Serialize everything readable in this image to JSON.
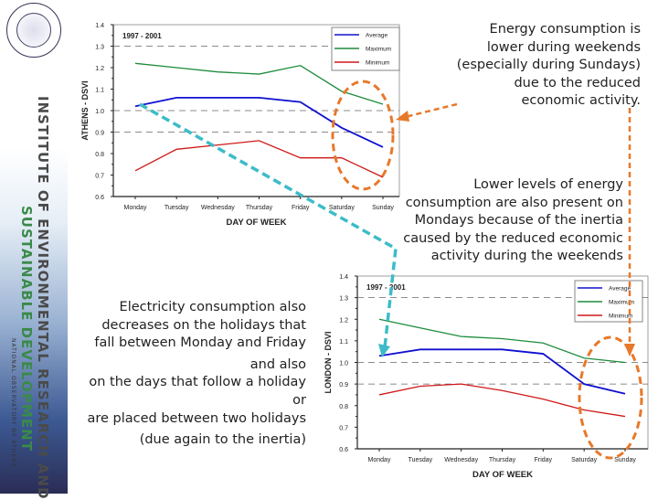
{
  "sidebar": {
    "institute_line1": "INSTITUTE OF ENVIRONMENTAL RESEARCH AND",
    "institute_line2": "SUSTAINABLE DEVELOPMENT",
    "observatory": "NATIONAL OBSERVATORY OF ATHENS",
    "seal_text": "NATIONAL OBSERVATORY OF ATHENS"
  },
  "notes": {
    "weekend": [
      "Energy consumption is",
      "lower during weekends",
      "(especially during Sundays)",
      "due to the reduced",
      "economic activity."
    ],
    "monday": [
      "Lower levels of energy",
      "consumption are also present on",
      "Mondays because of the inertia",
      "caused by the reduced economic",
      "activity during the weekends"
    ],
    "holidays": [
      "Electricity consumption also",
      "decreases on the holidays that",
      "fall between Monday and Friday",
      "and also",
      "on the days that follow a holiday",
      "or",
      "are placed between two holidays",
      "(due again to the inertia)"
    ]
  },
  "colors": {
    "average": "#1010d0",
    "maximum": "#1e8c3c",
    "minimum": "#d01818",
    "highlight": "#e8782a",
    "arrow": "#3cbcc8"
  },
  "chart_data": [
    {
      "type": "line",
      "title": "1997 - 2001",
      "xlabel": "DAY OF WEEK",
      "ylabel": "ATHENS - DSVI",
      "ylim": [
        0.6,
        1.4
      ],
      "yticks": [
        "0.6",
        "0.7",
        "0.8",
        "0.9",
        "1.0",
        "1.1",
        "1.2",
        "1.3",
        "1.4"
      ],
      "dashed_gridlines": [
        0.9,
        1.0,
        1.3
      ],
      "legend": "top-right",
      "categories": [
        "Monday",
        "Tuesday",
        "Wednesday",
        "Thursday",
        "Friday",
        "Saturday",
        "Sunday"
      ],
      "series": [
        {
          "name": "Average",
          "values": [
            1.02,
            1.06,
            1.06,
            1.06,
            1.04,
            0.92,
            0.83
          ]
        },
        {
          "name": "Maximum",
          "values": [
            1.22,
            1.2,
            1.18,
            1.17,
            1.21,
            1.09,
            1.03
          ]
        },
        {
          "name": "Minimum",
          "values": [
            0.72,
            0.82,
            0.84,
            0.86,
            0.78,
            0.78,
            0.69
          ]
        }
      ]
    },
    {
      "type": "line",
      "title": "1997 - 2001",
      "xlabel": "DAY OF WEEK",
      "ylabel": "LONDON - DSVI",
      "ylim": [
        0.6,
        1.4
      ],
      "yticks": [
        "0.6",
        "0.7",
        "0.8",
        "0.9",
        "1.0",
        "1.1",
        "1.2",
        "1.3",
        "1.4"
      ],
      "dashed_gridlines": [
        0.9,
        1.0,
        1.3
      ],
      "legend": "top-right",
      "categories": [
        "Monday",
        "Tuesday",
        "Wednesday",
        "Thursday",
        "Friday",
        "Saturday",
        "Sunday"
      ],
      "series": [
        {
          "name": "Average",
          "values": [
            1.03,
            1.06,
            1.06,
            1.06,
            1.04,
            0.9,
            0.855
          ]
        },
        {
          "name": "Maximum",
          "values": [
            1.2,
            1.16,
            1.12,
            1.11,
            1.09,
            1.02,
            1.0
          ]
        },
        {
          "name": "Minimum",
          "values": [
            0.85,
            0.89,
            0.9,
            0.87,
            0.83,
            0.78,
            0.75
          ]
        }
      ]
    }
  ]
}
